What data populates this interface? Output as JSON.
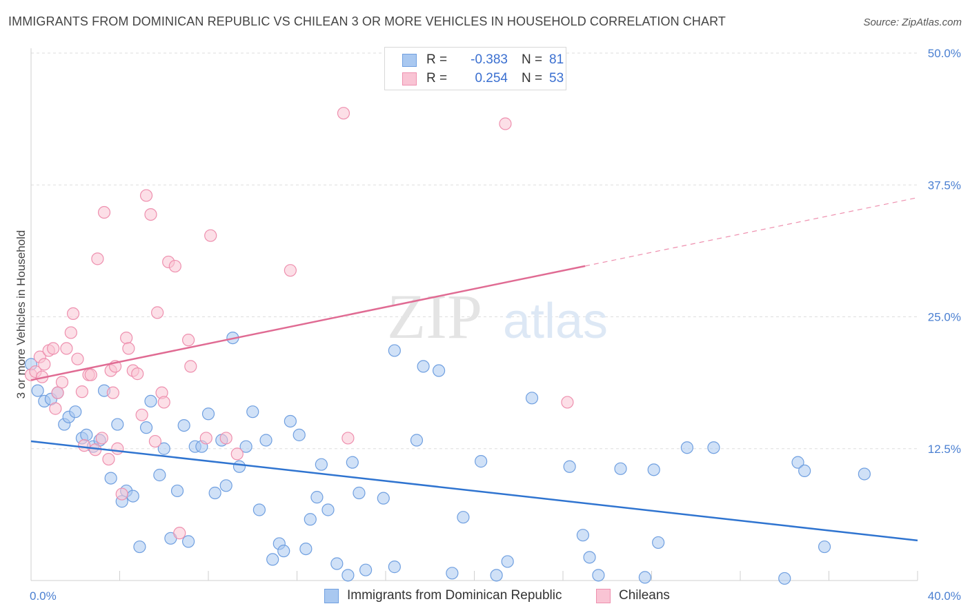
{
  "title": "IMMIGRANTS FROM DOMINICAN REPUBLIC VS CHILEAN 3 OR MORE VEHICLES IN HOUSEHOLD CORRELATION CHART",
  "source": "Source: ZipAtlas.com",
  "watermark": {
    "zip": "ZIP",
    "atlas": "atlas"
  },
  "legend": {
    "rows": [
      {
        "r_label": "R =",
        "r_value": "-0.383",
        "n_label": "N =",
        "n_value": "81",
        "color": "#a9c8f0",
        "border": "#6f9fe0"
      },
      {
        "r_label": "R =",
        "r_value": "0.254",
        "n_label": "N =",
        "n_value": "53",
        "color": "#f9c4d4",
        "border": "#ee8fae"
      }
    ]
  },
  "bottom_legend": [
    {
      "label": "Immigrants from Dominican Republic",
      "color": "#a9c8f0",
      "border": "#6f9fe0"
    },
    {
      "label": "Chileans",
      "color": "#f9c4d4",
      "border": "#ee8fae"
    }
  ],
  "chart_data": {
    "type": "scatter",
    "title": "IMMIGRANTS FROM DOMINICAN REPUBLIC VS CHILEAN 3 OR MORE VEHICLES IN HOUSEHOLD CORRELATION CHART",
    "xlabel": "",
    "ylabel": "3 or more Vehicles in Household",
    "xlim": [
      0,
      40
    ],
    "ylim": [
      0,
      50
    ],
    "x_tick_labels": [
      "0.0%",
      "40.0%"
    ],
    "y_ticks": [
      12.5,
      25.0,
      37.5,
      50.0
    ],
    "y_tick_labels": [
      "12.5%",
      "25.0%",
      "37.5%",
      "50.0%"
    ],
    "grid": "horizontal dashed",
    "legend_position": "top-center",
    "series": [
      {
        "name": "Immigrants from Dominican Republic",
        "color": "#6f9fe0",
        "fill": "#a9c8f0",
        "trend": {
          "x": [
            0,
            40
          ],
          "y": [
            13.2,
            3.8
          ],
          "dashed_from": null
        },
        "points": [
          [
            0.0,
            20.5
          ],
          [
            0.3,
            18.0
          ],
          [
            0.6,
            17.0
          ],
          [
            0.9,
            17.2
          ],
          [
            1.2,
            17.8
          ],
          [
            1.5,
            14.8
          ],
          [
            1.7,
            15.5
          ],
          [
            2.0,
            16.0
          ],
          [
            2.3,
            13.5
          ],
          [
            2.5,
            13.8
          ],
          [
            2.8,
            12.7
          ],
          [
            3.1,
            13.3
          ],
          [
            3.3,
            18.0
          ],
          [
            3.6,
            9.7
          ],
          [
            3.9,
            14.8
          ],
          [
            4.1,
            7.5
          ],
          [
            4.3,
            8.5
          ],
          [
            4.6,
            8.0
          ],
          [
            4.9,
            3.2
          ],
          [
            5.2,
            14.5
          ],
          [
            5.4,
            17.0
          ],
          [
            5.8,
            10.0
          ],
          [
            6.0,
            12.5
          ],
          [
            6.3,
            4.0
          ],
          [
            6.6,
            8.5
          ],
          [
            6.9,
            14.7
          ],
          [
            7.1,
            3.7
          ],
          [
            7.4,
            12.7
          ],
          [
            7.7,
            12.7
          ],
          [
            8.0,
            15.8
          ],
          [
            8.3,
            8.3
          ],
          [
            8.6,
            13.3
          ],
          [
            8.8,
            9.0
          ],
          [
            9.1,
            23.0
          ],
          [
            9.4,
            10.8
          ],
          [
            9.7,
            12.7
          ],
          [
            10.0,
            16.0
          ],
          [
            10.3,
            6.7
          ],
          [
            10.6,
            13.3
          ],
          [
            10.9,
            2.0
          ],
          [
            11.2,
            3.5
          ],
          [
            11.4,
            2.8
          ],
          [
            11.7,
            15.1
          ],
          [
            12.1,
            13.8
          ],
          [
            12.4,
            3.0
          ],
          [
            12.6,
            5.8
          ],
          [
            12.9,
            7.9
          ],
          [
            13.1,
            11.0
          ],
          [
            13.4,
            6.7
          ],
          [
            13.8,
            1.6
          ],
          [
            14.3,
            0.5
          ],
          [
            14.5,
            11.2
          ],
          [
            14.8,
            8.3
          ],
          [
            15.1,
            1.0
          ],
          [
            15.9,
            7.8
          ],
          [
            16.4,
            1.3
          ],
          [
            16.4,
            21.8
          ],
          [
            17.4,
            13.3
          ],
          [
            17.7,
            20.3
          ],
          [
            18.4,
            19.9
          ],
          [
            19.0,
            0.7
          ],
          [
            19.5,
            6.0
          ],
          [
            20.3,
            11.3
          ],
          [
            21.0,
            0.5
          ],
          [
            21.5,
            1.8
          ],
          [
            22.6,
            17.3
          ],
          [
            24.3,
            10.8
          ],
          [
            24.9,
            4.3
          ],
          [
            25.2,
            2.2
          ],
          [
            25.6,
            0.5
          ],
          [
            26.6,
            10.6
          ],
          [
            27.7,
            0.3
          ],
          [
            28.1,
            10.5
          ],
          [
            28.3,
            3.6
          ],
          [
            29.6,
            12.6
          ],
          [
            30.8,
            12.6
          ],
          [
            34.0,
            0.2
          ],
          [
            34.6,
            11.2
          ],
          [
            34.9,
            10.4
          ],
          [
            35.8,
            3.2
          ],
          [
            37.6,
            10.1
          ]
        ]
      },
      {
        "name": "Chileans",
        "color": "#ee8fae",
        "fill": "#f9c4d4",
        "trend": {
          "x": [
            0,
            40
          ],
          "y": [
            19.0,
            36.3
          ],
          "dashed_from": 25.0
        },
        "points": [
          [
            0.0,
            19.5
          ],
          [
            0.2,
            19.8
          ],
          [
            0.4,
            21.2
          ],
          [
            0.6,
            20.5
          ],
          [
            0.8,
            21.8
          ],
          [
            1.0,
            22.0
          ],
          [
            1.2,
            17.8
          ],
          [
            1.4,
            18.8
          ],
          [
            1.6,
            22.0
          ],
          [
            1.8,
            23.5
          ],
          [
            1.9,
            25.3
          ],
          [
            2.1,
            21.0
          ],
          [
            2.3,
            17.9
          ],
          [
            2.6,
            19.5
          ],
          [
            2.7,
            19.5
          ],
          [
            2.9,
            12.4
          ],
          [
            3.0,
            30.5
          ],
          [
            3.2,
            13.5
          ],
          [
            3.3,
            34.9
          ],
          [
            3.5,
            11.5
          ],
          [
            3.6,
            19.9
          ],
          [
            3.7,
            17.8
          ],
          [
            3.9,
            12.5
          ],
          [
            4.1,
            8.2
          ],
          [
            4.3,
            23.0
          ],
          [
            4.4,
            22.0
          ],
          [
            4.6,
            19.9
          ],
          [
            4.8,
            19.6
          ],
          [
            5.0,
            15.7
          ],
          [
            5.2,
            36.5
          ],
          [
            5.4,
            34.7
          ],
          [
            5.6,
            13.2
          ],
          [
            5.7,
            25.4
          ],
          [
            5.9,
            17.8
          ],
          [
            6.0,
            16.9
          ],
          [
            6.2,
            30.2
          ],
          [
            6.5,
            29.8
          ],
          [
            6.7,
            4.5
          ],
          [
            7.1,
            22.8
          ],
          [
            7.2,
            20.3
          ],
          [
            7.9,
            13.5
          ],
          [
            8.1,
            32.7
          ],
          [
            8.8,
            13.5
          ],
          [
            9.3,
            12.0
          ],
          [
            11.7,
            29.4
          ],
          [
            14.1,
            44.3
          ],
          [
            14.3,
            13.5
          ],
          [
            21.4,
            43.3
          ],
          [
            24.2,
            16.9
          ],
          [
            0.5,
            19.3
          ],
          [
            1.1,
            16.3
          ],
          [
            2.4,
            12.8
          ],
          [
            3.8,
            20.3
          ]
        ]
      }
    ]
  }
}
